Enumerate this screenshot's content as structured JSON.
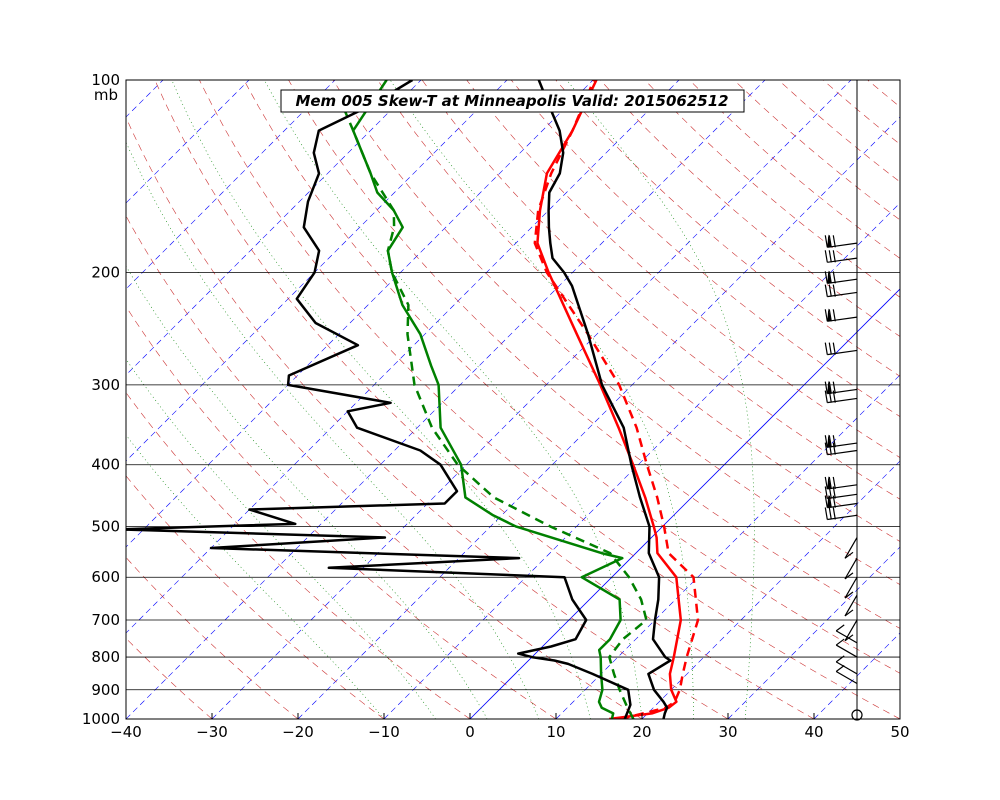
{
  "chart_data": {
    "type": "line",
    "title": "Mem 005  Skew-T at Minneapolis   Valid: 2015062512",
    "ylabel_unit": "mb",
    "xlim": [
      -40,
      50
    ],
    "plim": [
      1000,
      100
    ],
    "x_ticks": [
      "−40",
      "−30",
      "−20",
      "−10",
      "0",
      "10",
      "20",
      "30",
      "40",
      "50"
    ],
    "x_tick_values": [
      -40,
      -30,
      -20,
      -10,
      0,
      10,
      20,
      30,
      40,
      50
    ],
    "p_ticks": [
      "100",
      "200",
      "300",
      "400",
      "500",
      "600",
      "700",
      "800",
      "900",
      "1000"
    ],
    "p_tick_values": [
      100,
      200,
      300,
      400,
      500,
      600,
      700,
      800,
      900,
      1000
    ],
    "colors": {
      "temp_solid": "#ff0000",
      "temp_dashed": "#ff0000",
      "temp_black": "#000000",
      "dew_solid": "#008000",
      "dew_dashed": "#008000",
      "dew_black": "#000000",
      "isotherm": "#0000ff",
      "dry_adiabat": "#cc3333",
      "moist_adiabat": "#008000",
      "isobar": "#000000"
    },
    "series": [
      {
        "role": "temperature-red-solid",
        "style": "solid",
        "points": [
          [
            1000,
            16.2
          ],
          [
            980,
            20.5
          ],
          [
            960,
            21.8
          ],
          [
            940,
            22.0
          ],
          [
            900,
            20.0
          ],
          [
            850,
            18.0
          ],
          [
            800,
            16.5
          ],
          [
            700,
            13.0
          ],
          [
            600,
            7.5
          ],
          [
            550,
            2.5
          ],
          [
            520,
            0.6
          ],
          [
            500,
            -1.0
          ],
          [
            450,
            -5.4
          ],
          [
            400,
            -10.6
          ],
          [
            350,
            -16.6
          ],
          [
            300,
            -23.7
          ],
          [
            250,
            -32.3
          ],
          [
            200,
            -42.8
          ],
          [
            180,
            -47.5
          ],
          [
            160,
            -51.0
          ],
          [
            140,
            -54.5
          ],
          [
            120,
            -56.5
          ],
          [
            100,
            -59.6
          ]
        ]
      },
      {
        "role": "temperature-red-dashed",
        "style": "dashed",
        "points": [
          [
            1000,
            17.5
          ],
          [
            960,
            21.5
          ],
          [
            940,
            21.8
          ],
          [
            900,
            21.0
          ],
          [
            850,
            19.5
          ],
          [
            800,
            18.0
          ],
          [
            700,
            15.0
          ],
          [
            600,
            9.5
          ],
          [
            550,
            3.8
          ],
          [
            500,
            0.2
          ],
          [
            450,
            -4.0
          ],
          [
            400,
            -9.0
          ],
          [
            350,
            -14.5
          ],
          [
            300,
            -21.5
          ],
          [
            250,
            -31.0
          ],
          [
            200,
            -43.0
          ],
          [
            180,
            -47.8
          ],
          [
            160,
            -51.2
          ],
          [
            140,
            -54.0
          ],
          [
            120,
            -56.5
          ],
          [
            100,
            -59.9
          ]
        ]
      },
      {
        "role": "temperature-black-member",
        "style": "solid",
        "points": [
          [
            1000,
            22.5
          ],
          [
            980,
            22.0
          ],
          [
            960,
            21.6
          ],
          [
            940,
            20.5
          ],
          [
            900,
            18.0
          ],
          [
            850,
            15.5
          ],
          [
            810,
            16.5
          ],
          [
            800,
            15.5
          ],
          [
            750,
            12.0
          ],
          [
            700,
            10.0
          ],
          [
            650,
            8.0
          ],
          [
            600,
            5.5
          ],
          [
            550,
            1.5
          ],
          [
            500,
            -1.5
          ],
          [
            450,
            -6.0
          ],
          [
            400,
            -10.8
          ],
          [
            350,
            -16.0
          ],
          [
            300,
            -23.5
          ],
          [
            250,
            -31.0
          ],
          [
            210,
            -38.5
          ],
          [
            200,
            -41.0
          ],
          [
            190,
            -44.0
          ],
          [
            180,
            -46.0
          ],
          [
            170,
            -48.0
          ],
          [
            160,
            -50.0
          ],
          [
            150,
            -52.0
          ],
          [
            140,
            -53.0
          ],
          [
            130,
            -55.0
          ],
          [
            120,
            -58.0
          ],
          [
            110,
            -62.0
          ],
          [
            100,
            -66.3
          ]
        ]
      },
      {
        "role": "dewpoint-green-solid",
        "style": "solid",
        "points": [
          [
            1000,
            16.5
          ],
          [
            980,
            16.0
          ],
          [
            960,
            14.0
          ],
          [
            940,
            13.0
          ],
          [
            900,
            12.0
          ],
          [
            850,
            10.0
          ],
          [
            800,
            8.0
          ],
          [
            780,
            7.0
          ],
          [
            750,
            7.0
          ],
          [
            700,
            6.0
          ],
          [
            650,
            3.5
          ],
          [
            600,
            -3.5
          ],
          [
            560,
            -1.0
          ],
          [
            550,
            -4.0
          ],
          [
            500,
            -17.0
          ],
          [
            480,
            -21.0
          ],
          [
            450,
            -26.3
          ],
          [
            400,
            -30.6
          ],
          [
            350,
            -37.3
          ],
          [
            300,
            -42.5
          ],
          [
            280,
            -45.6
          ],
          [
            250,
            -50.5
          ],
          [
            225,
            -56.0
          ],
          [
            200,
            -61.0
          ],
          [
            185,
            -64.0
          ],
          [
            170,
            -65.0
          ],
          [
            160,
            -68.0
          ],
          [
            150,
            -72.0
          ],
          [
            140,
            -75.0
          ],
          [
            120,
            -82.0
          ],
          [
            100,
            -84.0
          ]
        ]
      },
      {
        "role": "dewpoint-green-dashed",
        "style": "dashed",
        "points": [
          [
            1000,
            19.0
          ],
          [
            960,
            17.0
          ],
          [
            900,
            14.0
          ],
          [
            850,
            11.5
          ],
          [
            800,
            9.0
          ],
          [
            750,
            8.5
          ],
          [
            700,
            9.0
          ],
          [
            650,
            6.0
          ],
          [
            600,
            2.0
          ],
          [
            550,
            -3.0
          ],
          [
            500,
            -13.0
          ],
          [
            450,
            -23.0
          ],
          [
            400,
            -31.0
          ],
          [
            350,
            -38.3
          ],
          [
            300,
            -45.3
          ],
          [
            250,
            -52.0
          ],
          [
            225,
            -55.3
          ],
          [
            200,
            -61.0
          ],
          [
            185,
            -64.0
          ],
          [
            170,
            -66.0
          ],
          [
            160,
            -68.0
          ],
          [
            140,
            -75.0
          ],
          [
            120,
            -82.0
          ],
          [
            110,
            -86.0
          ]
        ]
      },
      {
        "role": "dewpoint-black-member",
        "style": "solid",
        "points": [
          [
            1000,
            18.0
          ],
          [
            950,
            17.0
          ],
          [
            900,
            15.0
          ],
          [
            850,
            9.0
          ],
          [
            820,
            5.0
          ],
          [
            810,
            3.0
          ],
          [
            800,
            0.0
          ],
          [
            790,
            -2.0
          ],
          [
            770,
            1.0
          ],
          [
            750,
            3.0
          ],
          [
            700,
            2.0
          ],
          [
            650,
            -2.0
          ],
          [
            600,
            -5.5
          ],
          [
            580,
            -34.0
          ],
          [
            560,
            -13.0
          ],
          [
            540,
            -50.0
          ],
          [
            520,
            -31.0
          ],
          [
            505,
            -63.0
          ],
          [
            495,
            -43.0
          ],
          [
            470,
            -50.0
          ],
          [
            460,
            -28.0
          ],
          [
            440,
            -28.0
          ],
          [
            400,
            -33.0
          ],
          [
            380,
            -37.0
          ],
          [
            350,
            -47.0
          ],
          [
            330,
            -50.0
          ],
          [
            320,
            -46.0
          ],
          [
            300,
            -60.0
          ],
          [
            290,
            -61.0
          ],
          [
            260,
            -56.5
          ],
          [
            240,
            -64.0
          ],
          [
            220,
            -69.0
          ],
          [
            200,
            -70.0
          ],
          [
            185,
            -72.0
          ],
          [
            170,
            -76.5
          ],
          [
            155,
            -79.0
          ],
          [
            140,
            -81.0
          ],
          [
            130,
            -84.0
          ],
          [
            120,
            -86.0
          ],
          [
            110,
            -83.0
          ],
          [
            100,
            -81.0
          ]
        ]
      }
    ],
    "wind_barbs_note": "wind barbs plotted along right side at each pressure level; calm circle at 1000 mb"
  }
}
